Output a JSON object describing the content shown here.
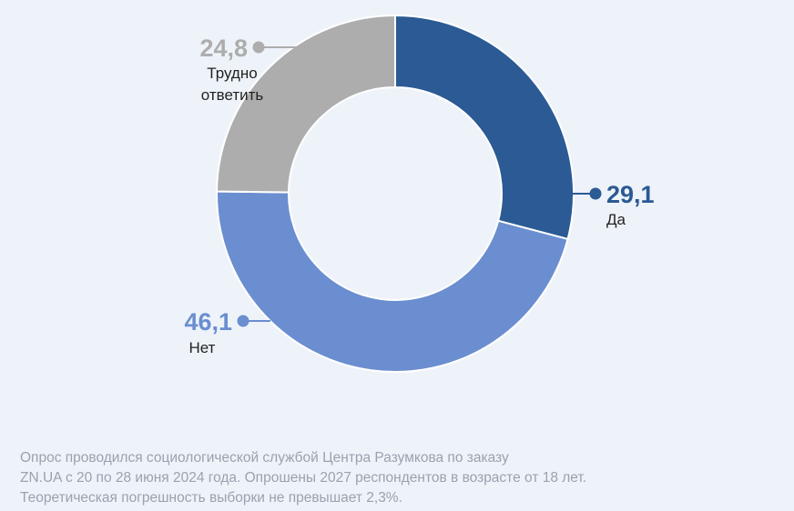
{
  "chart_data": {
    "type": "pie",
    "variant": "donut",
    "slices": [
      {
        "name": "Да",
        "value": 29.1,
        "label": "29,1",
        "color": "#2b5a94"
      },
      {
        "name": "Нет",
        "value": 46.1,
        "label": "46,1",
        "color": "#6b8ed0"
      },
      {
        "name": "Трудно ответить",
        "value": 24.8,
        "label": "24,8",
        "label_lines": [
          "Трудно",
          "ответить"
        ],
        "color": "#adadad"
      }
    ],
    "start_angle_deg": 0,
    "direction": "clockwise"
  },
  "footnote": {
    "lines": [
      "Опрос проводился социологической службой Центра Разумкова по заказу",
      "ZN.UA с 20 по 28 июня 2024 года. Опрошены 2027 респондентов в возрасте от 18 лет.",
      "Теоретическая погрешность выборки не превышает 2,3%."
    ]
  }
}
